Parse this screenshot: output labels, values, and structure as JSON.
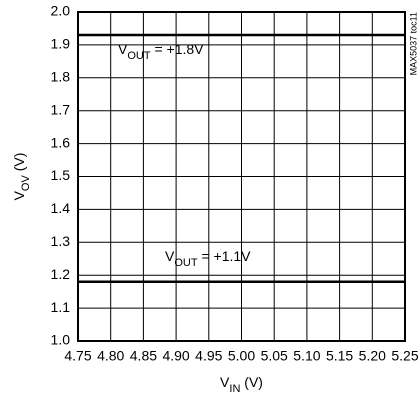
{
  "chart_data": {
    "type": "line",
    "x_label": [
      "V",
      "IN",
      " (V)"
    ],
    "y_label": [
      "V",
      "OV",
      " (V)"
    ],
    "side_note": "MAX5037 toc11",
    "annotations": [
      {
        "parts": [
          "V",
          "OUT",
          " = +1.8V"
        ]
      },
      {
        "parts": [
          "V",
          "OUT",
          " = +1.1V"
        ]
      }
    ],
    "x": [
      4.75,
      4.8,
      4.85,
      4.9,
      4.95,
      5.0,
      5.05,
      5.1,
      5.15,
      5.2,
      5.25
    ],
    "series": [
      {
        "name": "VOUT = +1.8V",
        "color": "#000000",
        "values": [
          1.93,
          1.93,
          1.93,
          1.93,
          1.93,
          1.93,
          1.93,
          1.93,
          1.93,
          1.93,
          1.93
        ]
      },
      {
        "name": "VOUT = +1.1V",
        "color": "#000000",
        "values": [
          1.18,
          1.18,
          1.18,
          1.18,
          1.18,
          1.18,
          1.18,
          1.18,
          1.18,
          1.18,
          1.18
        ]
      }
    ],
    "xlim": [
      4.75,
      5.25
    ],
    "xticks": [
      4.75,
      {
        "value": 4.8,
        "label": "4.80"
      },
      4.85,
      {
        "value": 4.9,
        "label": "4.90"
      },
      4.95,
      {
        "value": 5.0,
        "label": "5.00"
      },
      5.05,
      {
        "value": 5.1,
        "label": "5.10"
      },
      5.15,
      {
        "value": 5.2,
        "label": "5.20"
      },
      5.25
    ],
    "ylim": [
      1.0,
      2.0
    ],
    "yticks": [
      {
        "value": 1.0,
        "label": "1.0"
      },
      1.1,
      1.2,
      1.3,
      1.4,
      1.5,
      1.6,
      1.7,
      1.8,
      1.9,
      {
        "value": 2.0,
        "label": "2.0"
      }
    ],
    "grid": true
  }
}
